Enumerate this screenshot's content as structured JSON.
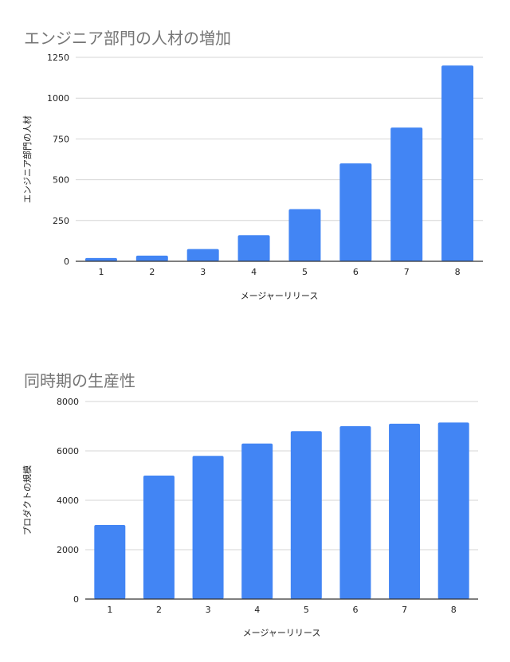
{
  "charts": [
    {
      "type": "bar",
      "title": "エンジニア部門の人材の増加",
      "xlabel": "メージャーリリース",
      "ylabel": "エンジニア部門の人材",
      "categories": [
        "1",
        "2",
        "3",
        "4",
        "5",
        "6",
        "7",
        "8"
      ],
      "values": [
        20,
        35,
        75,
        160,
        320,
        600,
        820,
        1200
      ],
      "ylim": [
        0,
        1250
      ],
      "yticks": [
        "0",
        "250",
        "500",
        "750",
        "1000",
        "1250"
      ],
      "ytick_values": [
        0,
        250,
        500,
        750,
        1000,
        1250
      ],
      "grid": true,
      "bar_color": "#4285f4"
    },
    {
      "type": "bar",
      "title": "同時期の生産性",
      "xlabel": "メージャーリリース",
      "ylabel": "プロダクトの規模",
      "categories": [
        "1",
        "2",
        "3",
        "4",
        "5",
        "6",
        "7",
        "8"
      ],
      "values": [
        3000,
        5000,
        5800,
        6300,
        6800,
        7000,
        7100,
        7150
      ],
      "ylim": [
        0,
        8000
      ],
      "yticks": [
        "0",
        "2000",
        "4000",
        "6000",
        "8000"
      ],
      "ytick_values": [
        0,
        2000,
        4000,
        6000,
        8000
      ],
      "grid": true,
      "bar_color": "#4285f4"
    }
  ]
}
